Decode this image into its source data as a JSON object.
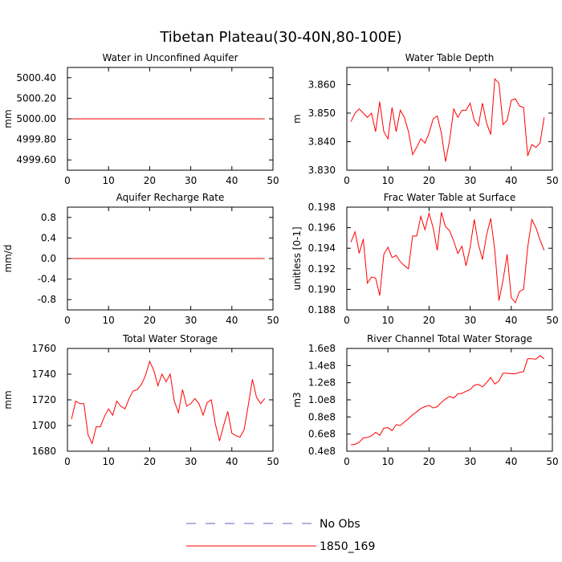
{
  "chart_data": {
    "type": "line",
    "title": "Tibetan Plateau(30-40N,80-100E)",
    "legend": [
      {
        "label": "No Obs",
        "color": "#6060c0",
        "style": "dashed"
      },
      {
        "label": "1850_169",
        "color": "#ff0000",
        "style": "solid"
      }
    ],
    "legend_position": "bottom-center",
    "panels": [
      {
        "title": "Water in Unconfined Aquifer",
        "ylabel": "mm",
        "xlim": [
          0,
          50
        ],
        "ylim": [
          4999.5,
          5000.5
        ],
        "xticks": [
          0,
          10,
          20,
          30,
          40,
          50
        ],
        "yticks": [
          4999.6,
          4999.8,
          5000.0,
          5000.2,
          5000.4
        ],
        "ytick_labels": [
          "4999.60",
          "4999.80",
          "5000.00",
          "5000.20",
          "5000.40"
        ],
        "series": [
          {
            "name": "1850_169",
            "x": [
              1,
              48
            ],
            "values": [
              5000.0,
              5000.0
            ]
          }
        ]
      },
      {
        "title": "Water Table Depth",
        "ylabel": "m",
        "xlim": [
          0,
          50
        ],
        "ylim": [
          3.83,
          3.866
        ],
        "xticks": [
          0,
          10,
          20,
          30,
          40,
          50
        ],
        "yticks": [
          3.83,
          3.84,
          3.85,
          3.86
        ],
        "ytick_labels": [
          "3.830",
          "3.840",
          "3.850",
          "3.860"
        ],
        "series": [
          {
            "name": "1850_169",
            "x": [
              1,
              2,
              3,
              4,
              5,
              6,
              7,
              8,
              9,
              10,
              11,
              12,
              13,
              14,
              15,
              16,
              17,
              18,
              19,
              20,
              21,
              22,
              23,
              24,
              25,
              26,
              27,
              28,
              29,
              30,
              31,
              32,
              33,
              34,
              35,
              36,
              37,
              38,
              39,
              40,
              41,
              42,
              43,
              44,
              45,
              46,
              47,
              48
            ],
            "values": [
              3.847,
              3.85,
              3.8515,
              3.85,
              3.8485,
              3.85,
              3.8435,
              3.854,
              3.8435,
              3.841,
              3.852,
              3.8435,
              3.851,
              3.8485,
              3.8435,
              3.8355,
              3.838,
              3.841,
              3.8395,
              3.843,
              3.848,
              3.849,
              3.843,
              3.833,
              3.8405,
              3.8515,
              3.8485,
              3.851,
              3.851,
              3.8535,
              3.8475,
              3.8455,
              3.8535,
              3.8465,
              3.8425,
              3.862,
              3.8605,
              3.846,
              3.8475,
              3.8545,
              3.855,
              3.8525,
              3.852,
              3.835,
              3.839,
              3.838,
              3.8395,
              3.8485
            ]
          }
        ]
      },
      {
        "title": "Aquifer Recharge Rate",
        "ylabel": "mm/d",
        "xlim": [
          0,
          50
        ],
        "ylim": [
          -1.0,
          1.0
        ],
        "xticks": [
          0,
          10,
          20,
          30,
          40,
          50
        ],
        "yticks": [
          -0.8,
          -0.4,
          0.0,
          0.4,
          0.8
        ],
        "ytick_labels": [
          "-0.8",
          "-0.4",
          "0.0",
          "0.4",
          "0.8"
        ],
        "series": [
          {
            "name": "1850_169",
            "x": [
              1,
              48
            ],
            "values": [
              0.0,
              0.0
            ]
          }
        ]
      },
      {
        "title": "Frac Water Table at Surface",
        "ylabel": "unitless [0-1]",
        "xlim": [
          0,
          50
        ],
        "ylim": [
          0.188,
          0.198
        ],
        "xticks": [
          0,
          10,
          20,
          30,
          40,
          50
        ],
        "yticks": [
          0.188,
          0.19,
          0.192,
          0.194,
          0.196,
          0.198
        ],
        "ytick_labels": [
          "0.188",
          "0.190",
          "0.192",
          "0.194",
          "0.196",
          "0.198"
        ],
        "series": [
          {
            "name": "1850_169",
            "x": [
              1,
              2,
              3,
              4,
              5,
              6,
              7,
              8,
              9,
              10,
              11,
              12,
              13,
              14,
              15,
              16,
              17,
              18,
              19,
              20,
              21,
              22,
              23,
              24,
              25,
              26,
              27,
              28,
              29,
              30,
              31,
              32,
              33,
              34,
              35,
              36,
              37,
              38,
              39,
              40,
              41,
              42,
              43,
              44,
              45,
              46,
              47,
              48
            ],
            "values": [
              0.1946,
              0.1956,
              0.1935,
              0.1949,
              0.1906,
              0.1912,
              0.1911,
              0.1894,
              0.1934,
              0.1941,
              0.1931,
              0.1933,
              0.1927,
              0.1923,
              0.192,
              0.1952,
              0.1952,
              0.1971,
              0.1958,
              0.1974,
              0.196,
              0.1938,
              0.1975,
              0.1961,
              0.1957,
              0.1947,
              0.1935,
              0.1942,
              0.1923,
              0.1941,
              0.1968,
              0.1944,
              0.1929,
              0.1953,
              0.1969,
              0.1938,
              0.1889,
              0.1909,
              0.1934,
              0.1892,
              0.1887,
              0.1898,
              0.19,
              0.1941,
              0.1968,
              0.196,
              0.1948,
              0.1938
            ]
          }
        ]
      },
      {
        "title": "Total Water Storage",
        "ylabel": "mm",
        "xlim": [
          0,
          50
        ],
        "ylim": [
          1680,
          1760
        ],
        "xticks": [
          0,
          10,
          20,
          30,
          40,
          50
        ],
        "yticks": [
          1680,
          1700,
          1720,
          1740,
          1760
        ],
        "ytick_labels": [
          "1680",
          "1700",
          "1720",
          "1740",
          "1760"
        ],
        "series": [
          {
            "name": "1850_169",
            "x": [
              1,
              2,
              3,
              4,
              5,
              6,
              7,
              8,
              9,
              10,
              11,
              12,
              13,
              14,
              15,
              16,
              17,
              18,
              19,
              20,
              21,
              22,
              23,
              24,
              25,
              26,
              27,
              28,
              29,
              30,
              31,
              32,
              33,
              34,
              35,
              36,
              37,
              38,
              39,
              40,
              41,
              42,
              43,
              44,
              45,
              46,
              47,
              48
            ],
            "values": [
              1705,
              1719,
              1717,
              1717,
              1693,
              1686,
              1699,
              1699,
              1707,
              1713,
              1708,
              1719,
              1715,
              1713,
              1721,
              1727,
              1728,
              1732,
              1739,
              1750,
              1743,
              1731,
              1740,
              1734,
              1740,
              1719,
              1710,
              1728,
              1715,
              1717,
              1721,
              1717,
              1708,
              1718,
              1720,
              1701,
              1688,
              1700,
              1711,
              1694,
              1692,
              1691,
              1697,
              1716,
              1736,
              1722,
              1717,
              1721
            ]
          }
        ]
      },
      {
        "title": "River Channel Total Water Storage",
        "ylabel": "m3",
        "xlim": [
          0,
          50
        ],
        "ylim": [
          40000000,
          160000000
        ],
        "xticks": [
          0,
          10,
          20,
          30,
          40,
          50
        ],
        "yticks": [
          40000000,
          60000000,
          80000000,
          100000000,
          120000000,
          140000000,
          160000000
        ],
        "ytick_labels": [
          "0.4e8",
          "0.6e8",
          "0.8e8",
          "1.0e8",
          "1.2e8",
          "1.4e8",
          "1.6e8"
        ],
        "series": [
          {
            "name": "1850_169",
            "x": [
              1,
              2,
              3,
              4,
              5,
              6,
              7,
              8,
              9,
              10,
              11,
              12,
              13,
              14,
              15,
              16,
              17,
              18,
              19,
              20,
              21,
              22,
              23,
              24,
              25,
              26,
              27,
              28,
              29,
              30,
              31,
              32,
              33,
              34,
              35,
              36,
              37,
              38,
              39,
              40,
              41,
              42,
              43,
              44,
              45,
              46,
              47,
              48
            ],
            "values": [
              47500000,
              48000000,
              50500000,
              55500000,
              56000000,
              58000000,
              62000000,
              58500000,
              67000000,
              67500000,
              64000000,
              71000000,
              70000000,
              74000000,
              78000000,
              82500000,
              86000000,
              90000000,
              92000000,
              93500000,
              90500000,
              92000000,
              97000000,
              101000000,
              104000000,
              102000000,
              107000000,
              107500000,
              110000000,
              112000000,
              117000000,
              118000000,
              115000000,
              120000000,
              126000000,
              118500000,
              122000000,
              131000000,
              131000000,
              130500000,
              130500000,
              132000000,
              133000000,
              148000000,
              148000000,
              147500000,
              151500000,
              148000000
            ]
          }
        ]
      }
    ]
  }
}
